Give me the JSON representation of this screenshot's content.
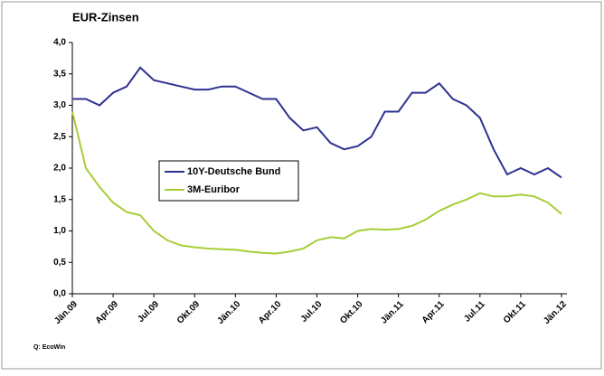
{
  "chart_data": {
    "type": "line",
    "title": "EUR-Zinsen",
    "source": "Q: EcoWin",
    "categories": [
      "Jän.09",
      null,
      null,
      "Apr.09",
      null,
      null,
      "Jul.09",
      null,
      null,
      "Okt.09",
      null,
      null,
      "Jän.10",
      null,
      null,
      "Apr.10",
      null,
      null,
      "Jul.10",
      null,
      null,
      "Okt.10",
      null,
      null,
      "Jän.11",
      null,
      null,
      "Apr.11",
      null,
      null,
      "Jul.11",
      null,
      null,
      "Okt.11",
      null,
      null,
      "Jän.12"
    ],
    "series": [
      {
        "name": "10Y-Deutsche Bund",
        "color": "#2e3192",
        "values": [
          3.1,
          3.1,
          3.0,
          3.2,
          3.3,
          3.6,
          3.4,
          3.35,
          3.3,
          3.25,
          3.25,
          3.3,
          3.3,
          3.2,
          3.1,
          3.1,
          2.8,
          2.6,
          2.65,
          2.4,
          2.3,
          2.35,
          2.5,
          2.9,
          2.9,
          3.2,
          3.2,
          3.35,
          3.1,
          3.0,
          2.8,
          2.3,
          1.9,
          2.0,
          1.9,
          2.0,
          1.85
        ]
      },
      {
        "name": "3M-Euribor",
        "color": "#a6ce39",
        "values": [
          2.9,
          2.0,
          1.7,
          1.45,
          1.3,
          1.25,
          1.0,
          0.85,
          0.77,
          0.74,
          0.72,
          0.71,
          0.7,
          0.67,
          0.65,
          0.64,
          0.67,
          0.72,
          0.85,
          0.9,
          0.88,
          1.0,
          1.03,
          1.02,
          1.03,
          1.08,
          1.18,
          1.32,
          1.42,
          1.5,
          1.6,
          1.55,
          1.55,
          1.58,
          1.55,
          1.45,
          1.27
        ]
      }
    ],
    "ylim": [
      0,
      4
    ],
    "yticks": [
      {
        "value": 0,
        "label": "0,0"
      },
      {
        "value": 0.5,
        "label": "0,5"
      },
      {
        "value": 1,
        "label": "1,0"
      },
      {
        "value": 1.5,
        "label": "1,5"
      },
      {
        "value": 2,
        "label": "2,0"
      },
      {
        "value": 2.5,
        "label": "2,5"
      },
      {
        "value": 3,
        "label": "3,0"
      },
      {
        "value": 3.5,
        "label": "3,5"
      },
      {
        "value": 4,
        "label": "4,0"
      }
    ]
  }
}
